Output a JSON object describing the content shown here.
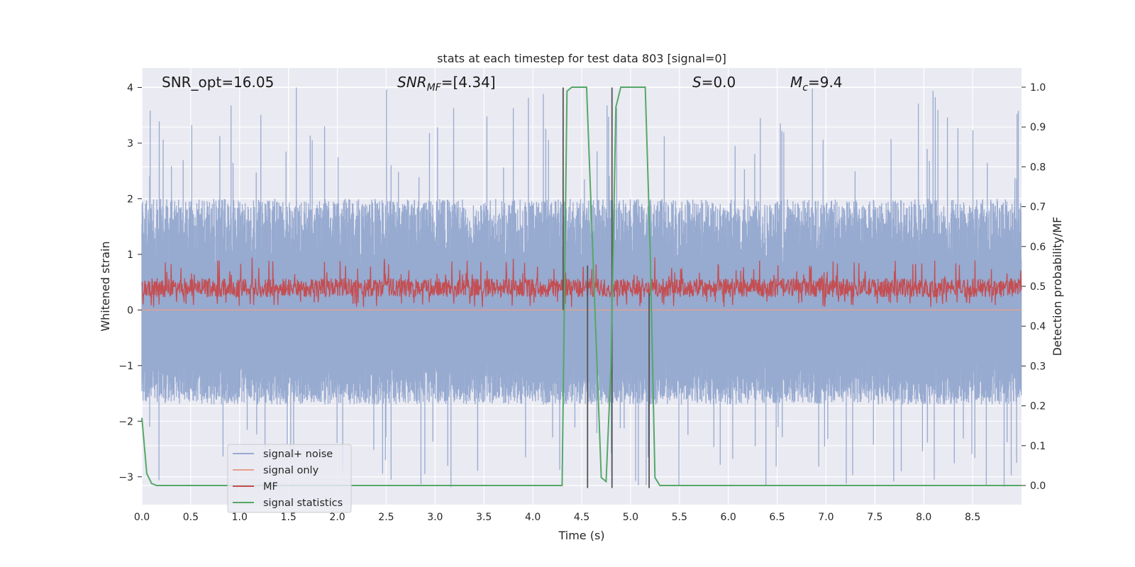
{
  "chart_data": {
    "type": "line",
    "title": "stats at each timestep for test data 803 [signal=0]",
    "xlabel": "Time (s)",
    "ylabel": "Whitened strain",
    "y2label": "Detection probability/MF",
    "xlim": [
      0,
      9.0
    ],
    "ylim": [
      -3.5,
      4.35
    ],
    "y2lim": [
      -0.048,
      1.048
    ],
    "xticks": [
      "0.0",
      "0.5",
      "1.0",
      "1.5",
      "2.0",
      "2.5",
      "3.0",
      "3.5",
      "4.0",
      "4.5",
      "5.0",
      "5.5",
      "6.0",
      "6.5",
      "7.0",
      "7.5",
      "8.0",
      "8.5"
    ],
    "yticks": [
      "−3",
      "−2",
      "−1",
      "0",
      "1",
      "2",
      "3",
      "4"
    ],
    "y2ticks": [
      "0.0",
      "0.1",
      "0.2",
      "0.3",
      "0.4",
      "0.5",
      "0.6",
      "0.7",
      "0.8",
      "0.9",
      "1.0"
    ],
    "grid": true,
    "legend_position": "lower-left",
    "annotations": {
      "snr_opt": "SNR_opt=16.05",
      "snr_mf_base": "SNR",
      "snr_mf_sub": "MF",
      "snr_mf_value": "=[4.34]",
      "s_italic": "S",
      "s_value": "=0.0",
      "mc_base": "M",
      "mc_sub": "c",
      "mc_value": "=9.4"
    },
    "colors": {
      "signal_noise": "#97aad0",
      "signal_only": "#e8a18a",
      "mf": "#c44e52",
      "statistics": "#55a868",
      "markers": "#555555",
      "background": "#eaeaf2",
      "grid": "#ffffff"
    },
    "series": [
      {
        "name": "signal+ noise",
        "axis": "left",
        "noise_envelope": {
          "typical_range": [
            -1.7,
            2.0
          ],
          "extreme_range": [
            -3.2,
            4.0
          ]
        }
      },
      {
        "name": "signal only",
        "axis": "left",
        "values": "approximately 0 throughout"
      },
      {
        "name": "MF",
        "axis": "left",
        "band_range": [
          0.05,
          0.95
        ],
        "center": 0.4
      },
      {
        "name": "signal statistics",
        "axis": "right",
        "x": [
          0.0,
          0.05,
          0.1,
          0.15,
          4.3,
          4.35,
          4.4,
          4.5,
          4.55,
          4.7,
          4.75,
          4.8,
          4.85,
          4.9,
          5.1,
          5.15,
          5.2,
          5.25,
          5.3,
          9.0
        ],
        "y": [
          0.17,
          0.03,
          0.005,
          0.0,
          0.0,
          0.99,
          1.0,
          1.0,
          1.0,
          0.02,
          0.01,
          0.3,
          0.95,
          1.0,
          1.0,
          1.0,
          0.6,
          0.02,
          0.0,
          0.0
        ]
      }
    ],
    "vertical_markers": [
      {
        "x": 4.31,
        "y_range": [
          0,
          4
        ]
      },
      {
        "x": 4.56,
        "y_range": [
          -3.2,
          0.8
        ]
      },
      {
        "x": 4.81,
        "y_range": [
          -3.2,
          4
        ]
      },
      {
        "x": 5.19,
        "y_range": [
          -3.2,
          0.3
        ]
      }
    ]
  }
}
